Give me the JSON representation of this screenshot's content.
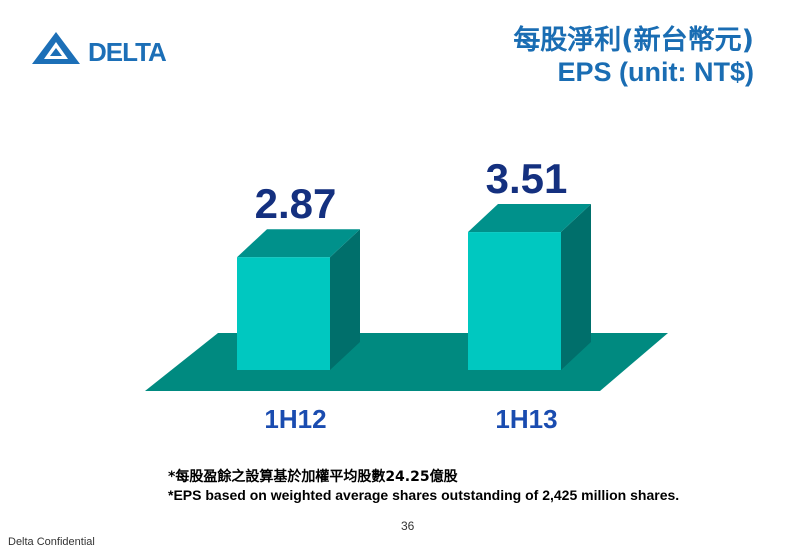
{
  "brand": {
    "name": "DELTA",
    "color": "#1c6fb7"
  },
  "header": {
    "title_cn": "每股淨利(新台幣元)",
    "title_en": "EPS (unit: NT$)"
  },
  "chart_data": {
    "type": "bar",
    "categories": [
      "1H12",
      "1H13"
    ],
    "values": [
      2.87,
      3.51
    ],
    "data_labels": [
      "2.87",
      "3.51"
    ],
    "title": "EPS (unit: NT$)",
    "xlabel": "",
    "ylabel": "",
    "grid": false,
    "style": "3d",
    "colors": {
      "bar_front": "#00c8c0",
      "bar_side": "#006f6b",
      "bar_top": "#00918b",
      "floor": "#008a80",
      "value_label": "#14307f",
      "category_label": "#1a4cb0"
    }
  },
  "notes": {
    "line1": "*每股盈餘之設算基於加權平均股數24.25億股",
    "line2": "*EPS based on weighted average shares outstanding of 2,425 million shares."
  },
  "footer": {
    "page_number": "36",
    "confidential": "Delta Confidential"
  }
}
